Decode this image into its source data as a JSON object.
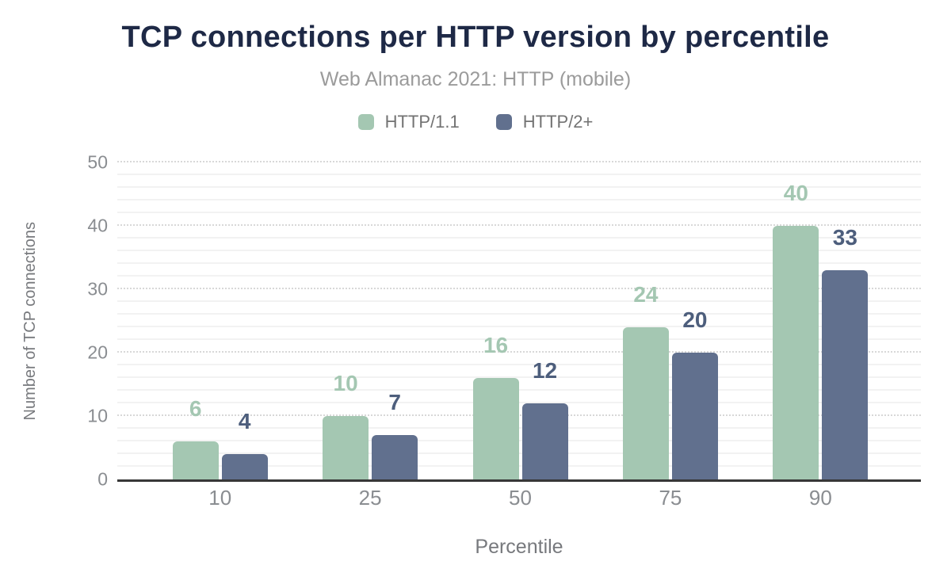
{
  "chart_data": {
    "type": "bar",
    "title": "TCP connections per HTTP version by percentile",
    "subtitle": "Web Almanac 2021: HTTP (mobile)",
    "categories": [
      "10",
      "25",
      "50",
      "75",
      "90"
    ],
    "series": [
      {
        "name": "HTTP/1.1",
        "color": "#a4c7b2",
        "label_color": "#a4c7b2",
        "values": [
          6,
          10,
          16,
          24,
          40
        ]
      },
      {
        "name": "HTTP/2+",
        "color": "#61708e",
        "label_color": "#4d5e7c",
        "values": [
          4,
          7,
          12,
          20,
          33
        ]
      }
    ],
    "xlabel": "Percentile",
    "ylabel": "Number of TCP connections",
    "ylim": [
      0,
      50
    ],
    "y_ticks": [
      0,
      10,
      20,
      30,
      40,
      50
    ],
    "y_major_step": 10,
    "y_minor_step": 2,
    "grid": true,
    "legend_position": "top",
    "data_labels": true,
    "colors": {
      "title_text": "#1e2946",
      "subtitle_text": "#9b9b9b",
      "legend_text": "#737373",
      "tick_text": "#8a8d91",
      "axis_title_text": "#77797d",
      "axis_line": "#373737",
      "major_gridline": "#d8d8d8",
      "minor_gridline": "#f2f2f2",
      "background": "#ffffff"
    }
  }
}
